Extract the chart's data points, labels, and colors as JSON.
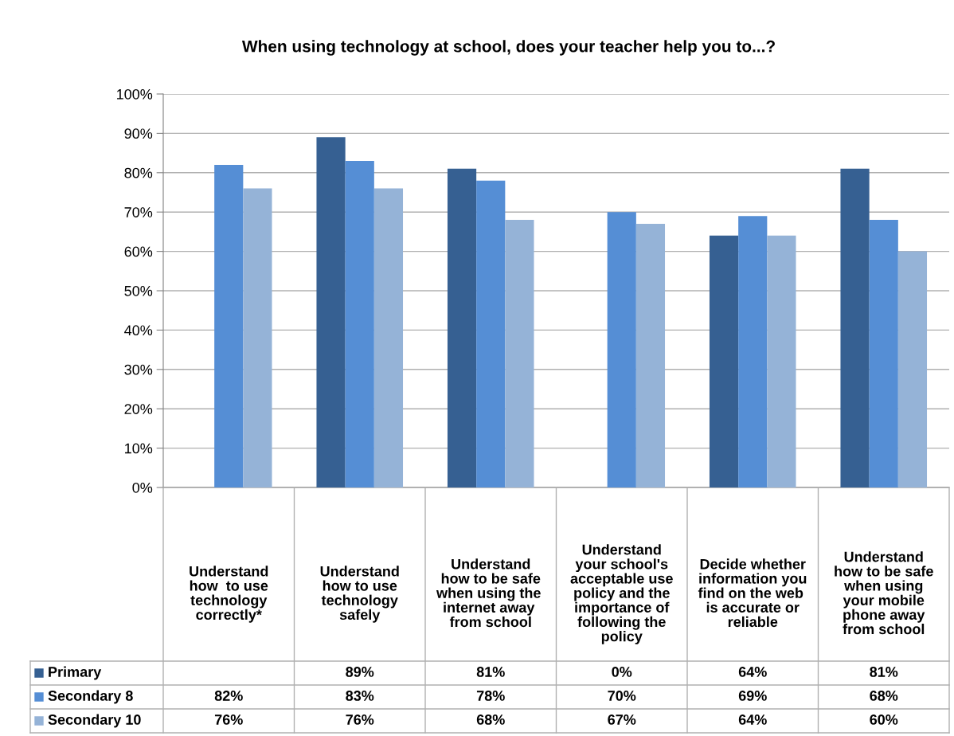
{
  "chart_data": {
    "type": "bar",
    "title": "When using technology at school, does your teacher help you to...?",
    "categories": [
      "Understand how  to use technology correctly*",
      "Understand how to use technology safely",
      "Understand how to be safe when using the  internet away  from school",
      "Understand your school's acceptable use policy and the importance of following the policy",
      "Decide whether information you find on the web  is accurate or reliable",
      "Understand how to be safe when using your mobile phone away from school"
    ],
    "series": [
      {
        "name": "Primary",
        "color": "#366092",
        "values": [
          null,
          89,
          81,
          0,
          64,
          81
        ],
        "value_labels": [
          null,
          "89%",
          "81%",
          "0%",
          "64%",
          "81%"
        ]
      },
      {
        "name": "Secondary 8",
        "color": "#558ed5",
        "values": [
          82,
          83,
          78,
          70,
          69,
          68
        ],
        "value_labels": [
          "82%",
          "83%",
          "78%",
          "70%",
          "69%",
          "68%"
        ]
      },
      {
        "name": "Secondary 10",
        "color": "#95b3d7",
        "values": [
          76,
          76,
          68,
          67,
          64,
          60
        ],
        "value_labels": [
          "76%",
          "76%",
          "68%",
          "67%",
          "64%",
          "60%"
        ]
      }
    ],
    "ylim": [
      0,
      100
    ],
    "yticks": [
      {
        "value": 0,
        "label": "0%"
      },
      {
        "value": 10,
        "label": "10%"
      },
      {
        "value": 20,
        "label": "20%"
      },
      {
        "value": 30,
        "label": "30%"
      },
      {
        "value": 40,
        "label": "40%"
      },
      {
        "value": 50,
        "label": "50%"
      },
      {
        "value": 60,
        "label": "60%"
      },
      {
        "value": 70,
        "label": "70%"
      },
      {
        "value": 80,
        "label": "80%"
      },
      {
        "value": 90,
        "label": "90%"
      },
      {
        "value": 100,
        "label": "100%"
      }
    ],
    "grid": "y",
    "legend": "bottom"
  }
}
